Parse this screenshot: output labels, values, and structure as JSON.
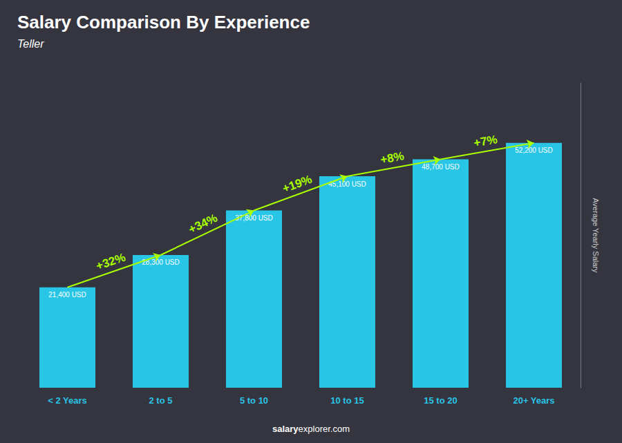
{
  "chart_data": {
    "type": "bar",
    "title": "Salary Comparison By Experience",
    "subtitle": "Teller",
    "ylabel": "Average Yearly Salary",
    "footer": [
      "salary",
      "explorer.com"
    ],
    "categories": [
      "< 2 Years",
      "2 to 5",
      "5 to 10",
      "10 to 15",
      "15 to 20",
      "20+ Years"
    ],
    "values": [
      21400,
      28300,
      37800,
      45100,
      48700,
      52200
    ],
    "value_labels": [
      "21,400 USD",
      "28,300 USD",
      "37,800 USD",
      "45,100 USD",
      "48,700 USD",
      "52,200 USD"
    ],
    "data_labels": true,
    "color": "#29c5e6",
    "annotations": [
      {
        "text": "+32%",
        "from": "< 2 Years",
        "to": "2 to 5",
        "color": "#aaff00"
      },
      {
        "text": "+34%",
        "from": "2 to 5",
        "to": "5 to 10",
        "color": "#aaff00"
      },
      {
        "text": "+19%",
        "from": "5 to 10",
        "to": "10 to 15",
        "color": "#aaff00"
      },
      {
        "text": "+8%",
        "from": "10 to 15",
        "to": "15 to 20",
        "color": "#aaff00"
      },
      {
        "text": "+7%",
        "from": "15 to 20",
        "to": "20+ Years",
        "color": "#aaff00"
      }
    ],
    "ylim": [
      0,
      65000
    ],
    "grid": false,
    "tick_labels": "x"
  }
}
